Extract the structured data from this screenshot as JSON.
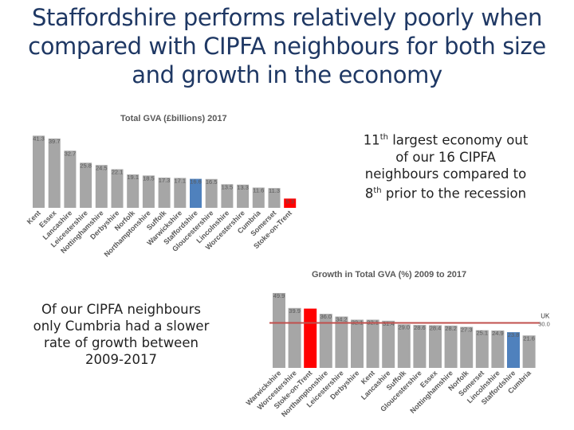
{
  "title": "Staffordshire performs relatively poorly when compared with CIPFA neighbours for both size and growth in the economy",
  "note1": {
    "part1": "11",
    "sup": "th",
    "part2": " largest economy out of our 16 CIPFA neighbours compared to 8",
    "sup2": "th",
    "part3": " prior to the recession"
  },
  "note2": "Of our CIPFA neighbours only Cumbria had a slower rate of growth between 2009-2017",
  "colors": {
    "bar": "#a6a6a6",
    "staffs": "#4f81bd",
    "stoke": "#ff0000",
    "uk_line": "#c0504d"
  },
  "chart_data": [
    {
      "type": "bar",
      "title": "Total GVA (£billions) 2017",
      "categories": [
        "Kent",
        "Essex",
        "Lancashire",
        "Leicestershire",
        "Nottinghamshire",
        "Derbyshire",
        "Norfolk",
        "Northamptonshire",
        "Suffolk",
        "Warwickshire",
        "Staffordshire",
        "Gloucestershire",
        "Lincolnshire",
        "Worcestershire",
        "Cumbria",
        "Somerset",
        "Stoke-on-Trent"
      ],
      "values": [
        41.3,
        39.7,
        32.7,
        25.8,
        24.5,
        22.1,
        19.1,
        18.5,
        17.3,
        17.1,
        16.6,
        16.5,
        13.5,
        13.3,
        11.6,
        11.3,
        5.3
      ],
      "value_labels": [
        "41.3",
        "39.7",
        "32.7",
        "25.8",
        "24.5",
        "22.1",
        "19.1",
        "18.5",
        "17.3",
        "17.1",
        "16.6",
        "16.5",
        "13.5",
        "13.3",
        "11.6",
        "11.3",
        "5.3"
      ],
      "highlight": {
        "Staffordshire": "staffs",
        "Stoke-on-Trent": "stoke"
      },
      "ylim": [
        0,
        44
      ],
      "grid": false
    },
    {
      "type": "bar",
      "title": "Growth in Total GVA (%) 2009 to 2017",
      "categories": [
        "Warwickshire",
        "Worcestershire",
        "Stoke-on-Trent",
        "Northamptonshire",
        "Leicestershire",
        "Derbyshire",
        "Kent",
        "Lancashire",
        "Suffolk",
        "Gloucestershire",
        "Essex",
        "Nottinghamshire",
        "Norfolk",
        "Somerset",
        "Lincolnshire",
        "Staffordshire",
        "Cumbria"
      ],
      "values": [
        49.9,
        39.9,
        39.5,
        36.0,
        34.2,
        32.1,
        32.1,
        31.4,
        29.0,
        28.6,
        28.4,
        28.2,
        27.3,
        25.1,
        24.9,
        23.8,
        21.6
      ],
      "value_labels": [
        "49.9",
        "39.9",
        "",
        "36.0",
        "34.2",
        "32.1",
        "32.1",
        "31.4",
        "29.0",
        "28.6",
        "28.4",
        "28.2",
        "27.3",
        "25.1",
        "24.9",
        "23.8",
        "21.6"
      ],
      "highlight": {
        "Staffordshire": "staffs",
        "Stoke-on-Trent": "stoke"
      },
      "reference_line": {
        "label": "UK",
        "value": 30.0,
        "value_label": "30.0"
      },
      "ylim": [
        0,
        52
      ],
      "grid": false
    }
  ]
}
